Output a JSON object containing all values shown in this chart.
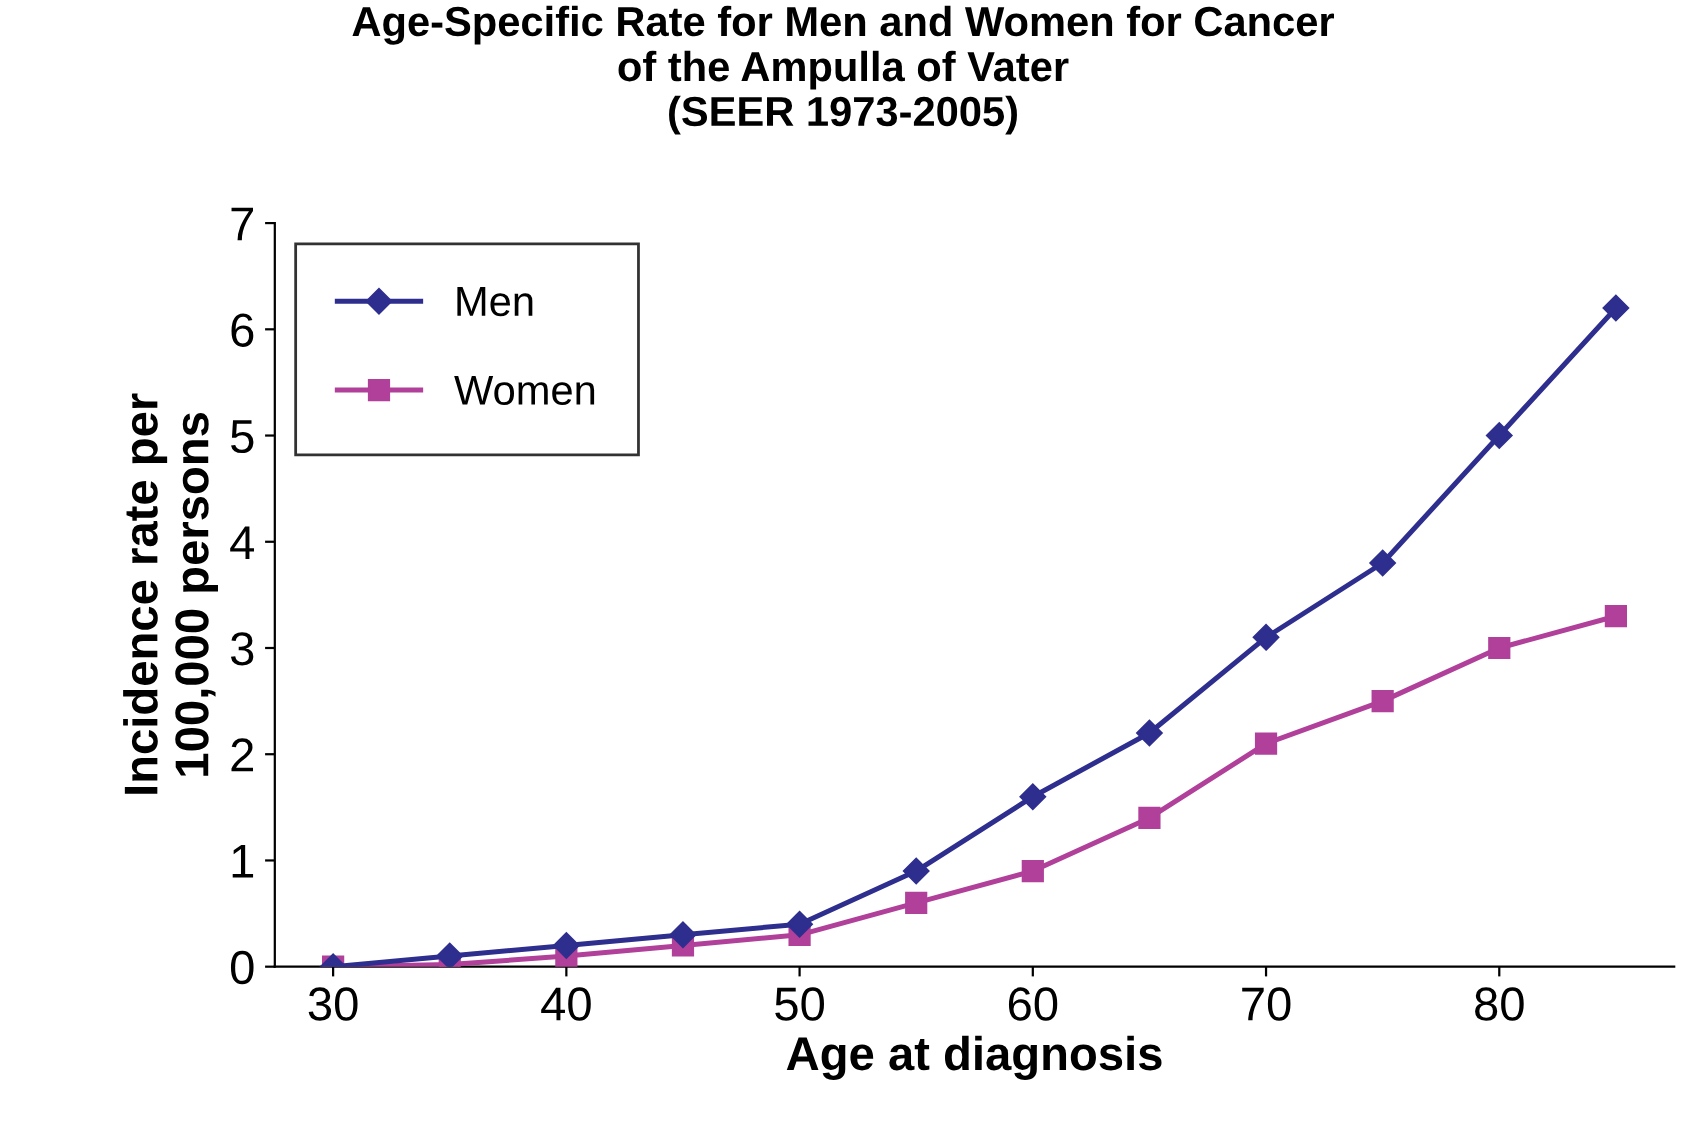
{
  "chart_data": {
    "type": "line",
    "title": "Age-Specific Rate for Men and Women for Cancer\nof the Ampulla of Vater\n(SEER 1973-2005)",
    "xlabel": "Age at diagnosis",
    "ylabel": "Incidence rate per\n100,000 persons",
    "x": [
      30,
      35,
      40,
      45,
      50,
      55,
      60,
      65,
      70,
      75,
      80,
      85
    ],
    "series": [
      {
        "name": "Men",
        "color": "#2e2e8f",
        "marker": "diamond",
        "values": [
          0,
          0.1,
          0.2,
          0.3,
          0.4,
          0.9,
          1.6,
          2.2,
          3.1,
          3.8,
          5.0,
          6.2
        ]
      },
      {
        "name": "Women",
        "color": "#b0409a",
        "marker": "square",
        "values": [
          0,
          0.02,
          0.1,
          0.2,
          0.3,
          0.6,
          0.9,
          1.4,
          2.1,
          2.5,
          3.0,
          3.3
        ]
      }
    ],
    "xlim": [
      27.5,
      87.5
    ],
    "ylim": [
      0,
      7
    ],
    "xticks": [
      30,
      40,
      50,
      60,
      70,
      80
    ],
    "yticks": [
      0,
      1,
      2,
      3,
      4,
      5,
      6,
      7
    ],
    "grid": false,
    "legend": "top left",
    "line_style": "solid"
  }
}
